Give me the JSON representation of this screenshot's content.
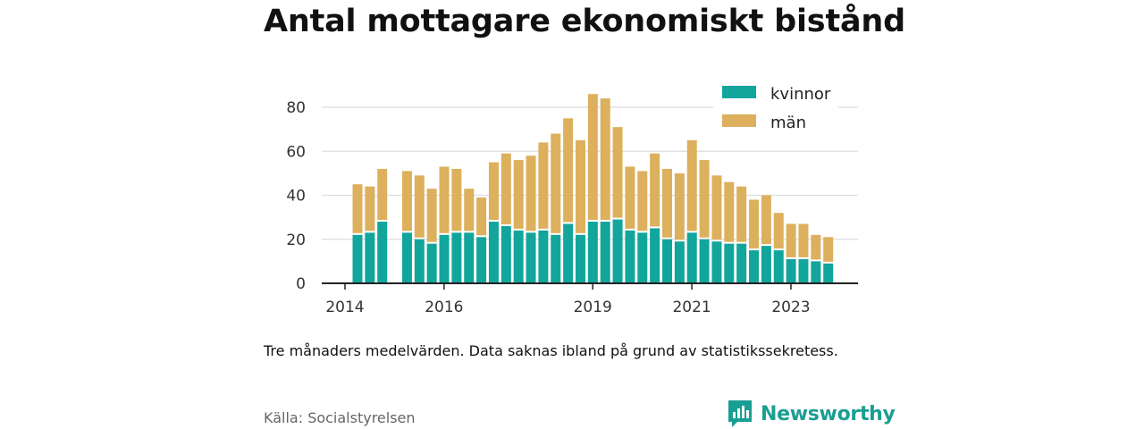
{
  "title": "Antal mottagare ekonomiskt bistånd",
  "note": "Tre månaders medelvärden. Data saknas ibland på grund av statistikssekretess.",
  "source": "Källa: Socialstyrelsen",
  "brand": {
    "name": "Newsworthy",
    "color": "#1a9e93",
    "icon": "bar-chart-speech-bubble-icon"
  },
  "colors": {
    "kvinnor": "#12a59b",
    "man": "#ddb05e",
    "grid": "#dddddd",
    "axis": "#222222"
  },
  "chart_data": {
    "type": "bar",
    "stacked": true,
    "x_ticks": [
      "2014",
      "2016",
      "2019",
      "2021",
      "2023"
    ],
    "y_ticks": [
      0,
      20,
      40,
      60,
      80
    ],
    "ylim": [
      0,
      90
    ],
    "grid": "horizontal",
    "legend_position": "top-right",
    "series": [
      {
        "name": "kvinnor",
        "values": [
          22,
          23,
          28,
          null,
          23,
          20,
          18,
          22,
          23,
          23,
          21,
          28,
          26,
          24,
          23,
          24,
          22,
          27,
          22,
          28,
          28,
          29,
          24,
          23,
          25,
          20,
          19,
          23,
          20,
          19,
          18,
          18,
          15,
          17,
          15,
          11,
          11,
          10,
          9
        ]
      },
      {
        "name": "män",
        "values": [
          23,
          21,
          24,
          null,
          28,
          29,
          25,
          31,
          29,
          20,
          18,
          27,
          33,
          32,
          35,
          40,
          46,
          48,
          43,
          58,
          56,
          42,
          29,
          28,
          34,
          32,
          31,
          42,
          36,
          30,
          28,
          26,
          23,
          23,
          17,
          16,
          16,
          12,
          12
        ]
      }
    ],
    "tick_positions": [
      0,
      8,
      20,
      28,
      36
    ]
  }
}
